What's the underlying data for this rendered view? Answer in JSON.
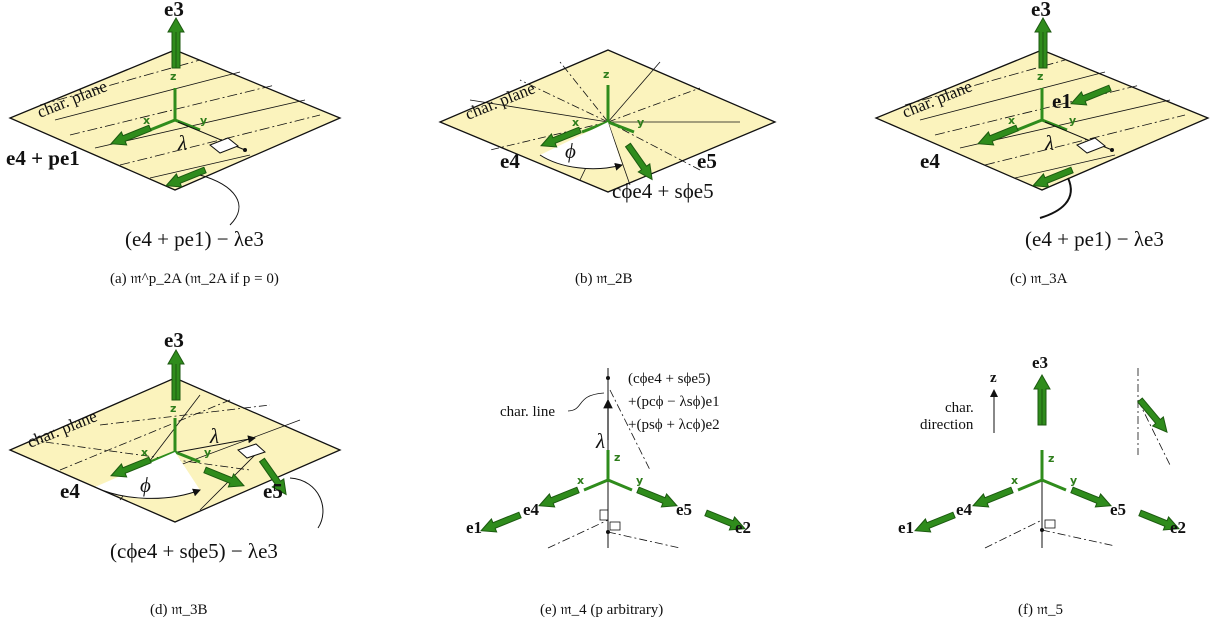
{
  "colors": {
    "plane": "#fbf3bd",
    "arrow_green": "#2f8c1c",
    "arrow_dark": "#1c5a10"
  },
  "panel_a": {
    "e3": "e3",
    "plane": "char. plane",
    "z": "z",
    "x": "x",
    "y": "y",
    "lambda": "λ",
    "left": "e4 + pe1",
    "bottom": "(e4 + pe1) − λe3",
    "caption": "(a) 𝔪^p_2A (𝔪_2A if p = 0)"
  },
  "panel_b": {
    "plane": "char. plane",
    "z": "z",
    "x": "x",
    "y": "y",
    "phi": "ϕ",
    "e4": "e4",
    "e5": "e5",
    "combo": "cϕe4 + sϕe5",
    "caption": "(b) 𝔪_2B"
  },
  "panel_c": {
    "e3": "e3",
    "plane": "char. plane",
    "z": "z",
    "x": "x",
    "y": "y",
    "e1": "e1",
    "lambda": "λ",
    "e4": "e4",
    "bottom": "(e4 + pe1) − λe3",
    "caption": "(c) 𝔪_3A"
  },
  "panel_d": {
    "e3": "e3",
    "plane": "char. plane",
    "z": "z",
    "x": "x",
    "y": "y",
    "lambda": "λ",
    "phi": "ϕ",
    "e4": "e4",
    "e5": "e5",
    "bottom": "(cϕe4 + sϕe5) − λe3",
    "caption": "(d) 𝔪_3B"
  },
  "panel_e": {
    "line1": "(cϕe4 + sϕe5)",
    "line2": "+(pcϕ − λsϕ)e1",
    "line3": "+(psϕ + λcϕ)e2",
    "char_line": "char. line",
    "lambda": "λ",
    "z": "z",
    "x": "x",
    "y": "y",
    "e4": "e4",
    "e5": "e5",
    "e1": "e1",
    "e2": "e2",
    "caption": "(e) 𝔪_4 (p arbitrary)"
  },
  "panel_f": {
    "z_label": "z",
    "char1": "char.",
    "char2": "direction",
    "e3": "e3",
    "z": "z",
    "x": "x",
    "y": "y",
    "e4": "e4",
    "e5": "e5",
    "e1": "e1",
    "e2": "e2",
    "caption": "(f) 𝔪_5"
  }
}
